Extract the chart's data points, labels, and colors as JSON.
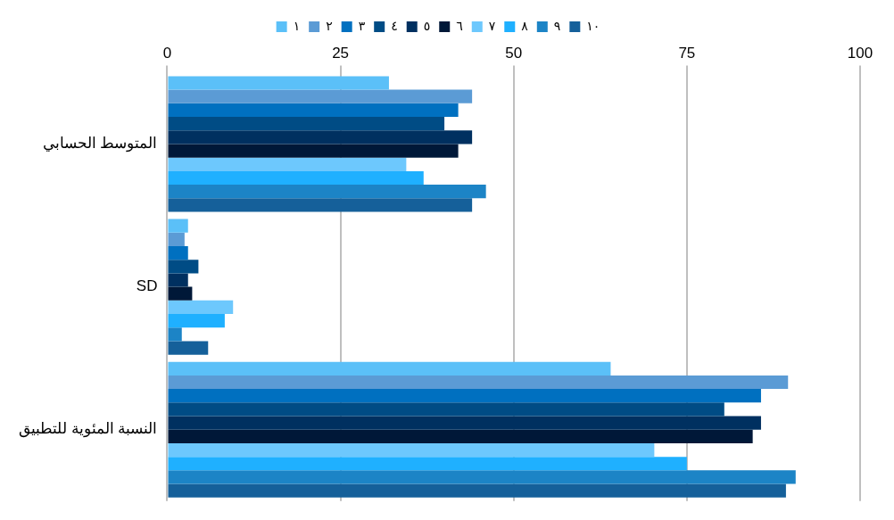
{
  "chart_data": {
    "type": "bar",
    "orientation": "horizontal",
    "categories": [
      "المتوسط الحسابي",
      "SD",
      "النسبة المئوية للتطبيق"
    ],
    "series": [
      {
        "name": "١",
        "color": "#5bc0f8",
        "values": [
          32,
          3,
          64
        ]
      },
      {
        "name": "٢",
        "color": "#5b9bd5",
        "values": [
          44,
          2.5,
          89.6
        ]
      },
      {
        "name": "٣",
        "color": "#0070c0",
        "values": [
          42,
          3,
          85.7
        ]
      },
      {
        "name": "٤",
        "color": "#004c85",
        "values": [
          40,
          4.5,
          80.4
        ]
      },
      {
        "name": "٥",
        "color": "#003060",
        "values": [
          44,
          3,
          85.7
        ]
      },
      {
        "name": "٦",
        "color": "#001838",
        "values": [
          42,
          3.6,
          84.5
        ]
      },
      {
        "name": "٧",
        "color": "#6dc8fd",
        "values": [
          34.5,
          9.5,
          70.3
        ]
      },
      {
        "name": "٨",
        "color": "#1fb0ff",
        "values": [
          37,
          8.3,
          75
        ]
      },
      {
        "name": "٩",
        "color": "#1c84c6",
        "values": [
          46,
          2.1,
          90.7
        ]
      },
      {
        "name": "١٠",
        "color": "#15609a",
        "values": [
          44,
          5.9,
          89.3
        ]
      }
    ],
    "xlim": [
      0,
      100
    ],
    "xticks": [
      0,
      25,
      50,
      75,
      100
    ],
    "grid": "x",
    "legend": "top"
  }
}
